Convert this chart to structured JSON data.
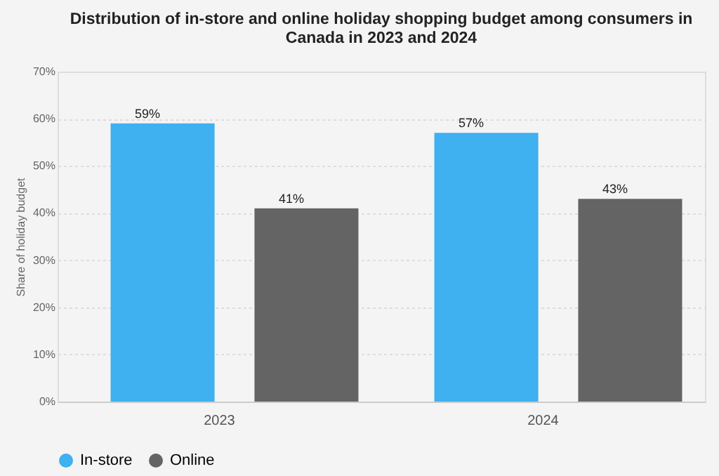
{
  "chart_data": {
    "type": "bar",
    "title": [
      "Distribution of in-store and online holiday shopping budget among consumers in",
      "Canada in 2023 and 2024"
    ],
    "ylabel": "Share of holiday budget",
    "categories": [
      "2023",
      "2024"
    ],
    "series": [
      {
        "name": "In-store",
        "color": "#3fb0f0",
        "values": [
          59,
          57
        ],
        "value_labels": [
          "59%",
          "57%"
        ]
      },
      {
        "name": "Online",
        "color": "#646464",
        "values": [
          41,
          43
        ],
        "value_labels": [
          "41%",
          "43%"
        ]
      }
    ],
    "ylim": [
      0,
      70
    ],
    "yticks": [
      {
        "value": 0,
        "label": "0%"
      },
      {
        "value": 10,
        "label": "10%"
      },
      {
        "value": 20,
        "label": "20%"
      },
      {
        "value": 30,
        "label": "30%"
      },
      {
        "value": 40,
        "label": "40%"
      },
      {
        "value": 50,
        "label": "50%"
      },
      {
        "value": 60,
        "label": "60%"
      },
      {
        "value": 70,
        "label": "70%"
      }
    ],
    "grid": "y",
    "legend": "bottom"
  }
}
